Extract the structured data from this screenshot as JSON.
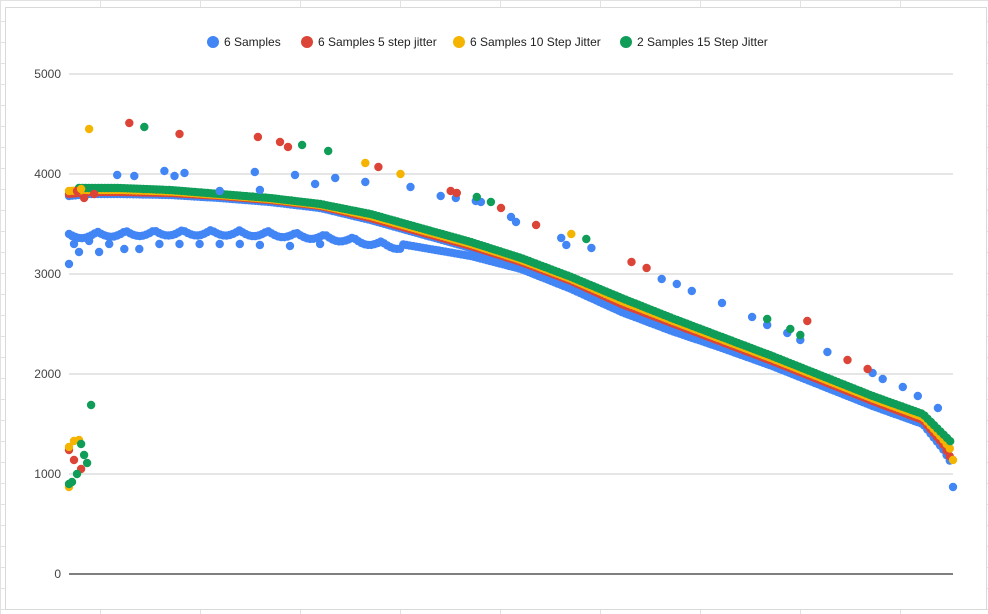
{
  "chart_data": {
    "type": "scatter",
    "title": "",
    "xlabel": "",
    "ylabel": "",
    "ylim": [
      0,
      5000
    ],
    "yticks": [
      "5000",
      "4000",
      "3000",
      "2000",
      "1000",
      "0"
    ],
    "grid": true,
    "legend_position": "top",
    "series": [
      {
        "name": "6 Samples",
        "color": "#4285f4"
      },
      {
        "name": "6 Samples 5 step jitter",
        "color": "#db4437"
      },
      {
        "name": "6 Samples 10 Step Jitter",
        "color": "#f4b400"
      },
      {
        "name": "2 Samples 15 Step Jitter",
        "color": "#0f9d58"
      }
    ],
    "bands": {
      "blue_low": [
        [
          0,
          3400
        ],
        [
          20,
          3420
        ],
        [
          50,
          3430
        ],
        [
          100,
          3440
        ],
        [
          150,
          3440
        ],
        [
          200,
          3430
        ],
        [
          250,
          3400
        ],
        [
          280,
          3370
        ],
        [
          330,
          3300
        ],
        [
          400,
          3180
        ],
        [
          450,
          3050
        ],
        [
          500,
          2850
        ],
        [
          550,
          2620
        ],
        [
          600,
          2430
        ],
        [
          650,
          2260
        ],
        [
          700,
          2080
        ],
        [
          750,
          1880
        ],
        [
          800,
          1680
        ],
        [
          850,
          1500
        ],
        [
          870,
          1250
        ],
        [
          880,
          1080
        ]
      ],
      "red_upper": [
        [
          0,
          3800
        ],
        [
          20,
          3820
        ],
        [
          50,
          3820
        ],
        [
          100,
          3810
        ],
        [
          150,
          3780
        ],
        [
          200,
          3740
        ],
        [
          250,
          3680
        ],
        [
          300,
          3560
        ],
        [
          350,
          3420
        ],
        [
          400,
          3280
        ],
        [
          450,
          3120
        ],
        [
          500,
          2930
        ],
        [
          550,
          2700
        ],
        [
          600,
          2510
        ],
        [
          650,
          2320
        ],
        [
          700,
          2130
        ],
        [
          750,
          1930
        ],
        [
          800,
          1730
        ],
        [
          850,
          1540
        ],
        [
          870,
          1300
        ],
        [
          880,
          1120
        ]
      ],
      "green_upper": [
        [
          10,
          3860
        ],
        [
          50,
          3860
        ],
        [
          100,
          3840
        ],
        [
          150,
          3800
        ],
        [
          200,
          3760
        ],
        [
          250,
          3700
        ],
        [
          300,
          3600
        ],
        [
          350,
          3460
        ],
        [
          400,
          3320
        ],
        [
          450,
          3160
        ],
        [
          500,
          2970
        ],
        [
          550,
          2760
        ],
        [
          600,
          2560
        ],
        [
          650,
          2370
        ],
        [
          700,
          2180
        ],
        [
          750,
          1980
        ],
        [
          800,
          1780
        ],
        [
          850,
          1600
        ],
        [
          870,
          1400
        ],
        [
          880,
          1300
        ]
      ]
    },
    "outliers": {
      "6 Samples": [
        [
          0,
          3100
        ],
        [
          3,
          3380
        ],
        [
          5,
          3300
        ],
        [
          10,
          3220
        ],
        [
          20,
          3330
        ],
        [
          30,
          3220
        ],
        [
          40,
          3300
        ],
        [
          55,
          3250
        ],
        [
          70,
          3250
        ],
        [
          90,
          3300
        ],
        [
          110,
          3300
        ],
        [
          130,
          3300
        ],
        [
          150,
          3300
        ],
        [
          170,
          3300
        ],
        [
          190,
          3290
        ],
        [
          220,
          3280
        ],
        [
          250,
          3300
        ],
        [
          48,
          3990
        ],
        [
          65,
          3980
        ],
        [
          95,
          4030
        ],
        [
          105,
          3980
        ],
        [
          115,
          4010
        ],
        [
          150,
          3830
        ],
        [
          185,
          4020
        ],
        [
          190,
          3840
        ],
        [
          225,
          3990
        ],
        [
          245,
          3900
        ],
        [
          265,
          3960
        ],
        [
          295,
          3920
        ],
        [
          340,
          3870
        ],
        [
          370,
          3780
        ],
        [
          385,
          3760
        ],
        [
          405,
          3730
        ],
        [
          410,
          3720
        ],
        [
          440,
          3570
        ],
        [
          445,
          3520
        ],
        [
          490,
          3360
        ],
        [
          495,
          3290
        ],
        [
          520,
          3260
        ],
        [
          590,
          2950
        ],
        [
          605,
          2900
        ],
        [
          620,
          2830
        ],
        [
          650,
          2710
        ],
        [
          680,
          2570
        ],
        [
          695,
          2490
        ],
        [
          715,
          2410
        ],
        [
          728,
          2340
        ],
        [
          755,
          2220
        ],
        [
          800,
          2010
        ],
        [
          810,
          1950
        ],
        [
          830,
          1870
        ],
        [
          845,
          1780
        ],
        [
          865,
          1660
        ],
        [
          880,
          870
        ]
      ],
      "6 Samples 5 step jitter": [
        [
          8,
          3830
        ],
        [
          15,
          3760
        ],
        [
          25,
          3800
        ],
        [
          60,
          4510
        ],
        [
          110,
          4400
        ],
        [
          188,
          4370
        ],
        [
          210,
          4320
        ],
        [
          218,
          4270
        ],
        [
          308,
          4070
        ],
        [
          380,
          3830
        ],
        [
          386,
          3810
        ],
        [
          430,
          3660
        ],
        [
          465,
          3490
        ],
        [
          560,
          3120
        ],
        [
          575,
          3060
        ],
        [
          735,
          2530
        ],
        [
          775,
          2140
        ],
        [
          795,
          2050
        ],
        [
          0,
          1240
        ],
        [
          5,
          1140
        ],
        [
          12,
          1050
        ]
      ],
      "6 Samples 10 Step Jitter": [
        [
          20,
          4450
        ],
        [
          12,
          3850
        ],
        [
          295,
          4110
        ],
        [
          330,
          4000
        ],
        [
          500,
          3400
        ],
        [
          0,
          1270
        ],
        [
          5,
          1330
        ],
        [
          10,
          1340
        ],
        [
          0,
          870
        ],
        [
          880,
          1140
        ]
      ],
      "2 Samples 15 Step Jitter": [
        [
          75,
          4470
        ],
        [
          232,
          4290
        ],
        [
          258,
          4230
        ],
        [
          406,
          3770
        ],
        [
          420,
          3720
        ],
        [
          515,
          3350
        ],
        [
          695,
          2550
        ],
        [
          718,
          2450
        ],
        [
          728,
          2390
        ],
        [
          22,
          1690
        ],
        [
          12,
          1300
        ],
        [
          15,
          1190
        ],
        [
          18,
          1110
        ],
        [
          0,
          900
        ],
        [
          3,
          920
        ],
        [
          8,
          1000
        ]
      ]
    }
  }
}
